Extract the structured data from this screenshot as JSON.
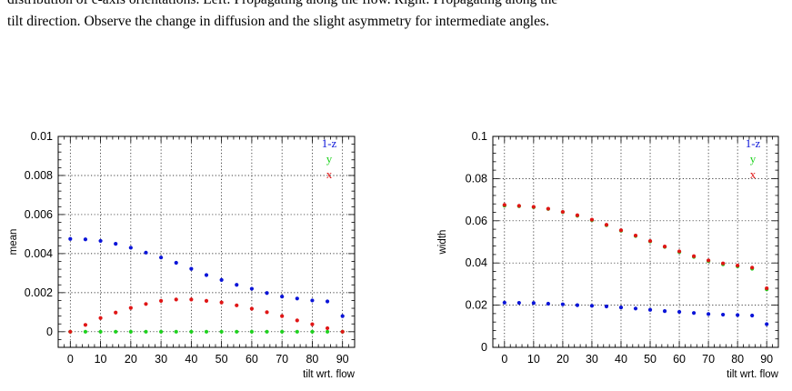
{
  "caption": {
    "line1": "distribution of c-axis orientations. Left: Propagating along the flow. Right: Propagating along the",
    "line2": "tilt direction. Observe the change in diffusion and the slight asymmetry for intermediate angles."
  },
  "colors": {
    "1-z": "#0a14d8",
    "y": "#1ed21e",
    "x": "#e01616"
  },
  "chart_data": [
    {
      "type": "scatter",
      "xlabel": "tilt wrt. flow",
      "ylabel": "mean",
      "xlim": [
        -4,
        94
      ],
      "ylim": [
        -0.0008,
        0.01
      ],
      "xticks": [
        0,
        10,
        20,
        30,
        40,
        50,
        60,
        70,
        80,
        90
      ],
      "xtick_labels": [
        "0",
        "10",
        "20",
        "30",
        "40",
        "50",
        "60",
        "70",
        "80",
        "90"
      ],
      "yticks": [
        0,
        0.002,
        0.004,
        0.006,
        0.008,
        0.01
      ],
      "ytick_labels": [
        "0",
        "0.002",
        "0.004",
        "0.006",
        "0.008",
        "0.01"
      ],
      "grid": true,
      "legend_position": "top-right",
      "x": [
        0,
        5,
        10,
        15,
        20,
        25,
        30,
        35,
        40,
        45,
        50,
        55,
        60,
        65,
        70,
        75,
        80,
        85,
        90
      ],
      "series": [
        {
          "name": "1-z",
          "values": [
            0.00475,
            0.00473,
            0.00465,
            0.0045,
            0.0043,
            0.00405,
            0.0038,
            0.00353,
            0.00322,
            0.0029,
            0.00265,
            0.0024,
            0.0022,
            0.00198,
            0.0018,
            0.0017,
            0.0016,
            0.00155,
            0.0008
          ]
        },
        {
          "name": "y",
          "values": [
            0,
            0,
            0,
            0,
            0,
            0,
            0,
            0,
            0,
            0,
            0,
            0,
            0,
            0,
            0,
            0,
            0,
            0,
            0
          ]
        },
        {
          "name": "x",
          "values": [
            0,
            0.00035,
            0.0007,
            0.00098,
            0.00122,
            0.00142,
            0.00158,
            0.00165,
            0.00165,
            0.00158,
            0.0015,
            0.00135,
            0.00118,
            0.001,
            0.0008,
            0.00058,
            0.00038,
            0.00018,
            0
          ]
        }
      ]
    },
    {
      "type": "scatter",
      "xlabel": "tilt wrt. flow",
      "ylabel": "width",
      "xlim": [
        -4,
        94
      ],
      "ylim": [
        0,
        0.1
      ],
      "xticks": [
        0,
        10,
        20,
        30,
        40,
        50,
        60,
        70,
        80,
        90
      ],
      "xtick_labels": [
        "0",
        "10",
        "20",
        "30",
        "40",
        "50",
        "60",
        "70",
        "80",
        "90"
      ],
      "yticks": [
        0,
        0.02,
        0.04,
        0.06,
        0.08,
        0.1
      ],
      "ytick_labels": [
        "0",
        "0.02",
        "0.04",
        "0.06",
        "0.08",
        "0.1"
      ],
      "grid": true,
      "legend_position": "top-right",
      "x": [
        0,
        5,
        10,
        15,
        20,
        25,
        30,
        35,
        40,
        45,
        50,
        55,
        60,
        65,
        70,
        75,
        80,
        85,
        90
      ],
      "series": [
        {
          "name": "1-z",
          "values": [
            0.0212,
            0.0211,
            0.021,
            0.0207,
            0.0204,
            0.02,
            0.0197,
            0.0194,
            0.0189,
            0.0184,
            0.0178,
            0.0172,
            0.0168,
            0.0163,
            0.0158,
            0.0155,
            0.0153,
            0.0151,
            0.011
          ]
        },
        {
          "name": "y",
          "values": [
            0.0672,
            0.0669,
            0.0664,
            0.0656,
            0.0641,
            0.0624,
            0.0603,
            0.0579,
            0.0553,
            0.0528,
            0.0502,
            0.0476,
            0.0452,
            0.0429,
            0.0409,
            0.0394,
            0.0384,
            0.0373,
            0.0275
          ]
        },
        {
          "name": "x",
          "values": [
            0.0675,
            0.0671,
            0.0666,
            0.0657,
            0.0642,
            0.0626,
            0.0605,
            0.0581,
            0.0555,
            0.053,
            0.0504,
            0.0478,
            0.0455,
            0.0432,
            0.0412,
            0.0398,
            0.0388,
            0.0378,
            0.028
          ]
        }
      ]
    }
  ]
}
